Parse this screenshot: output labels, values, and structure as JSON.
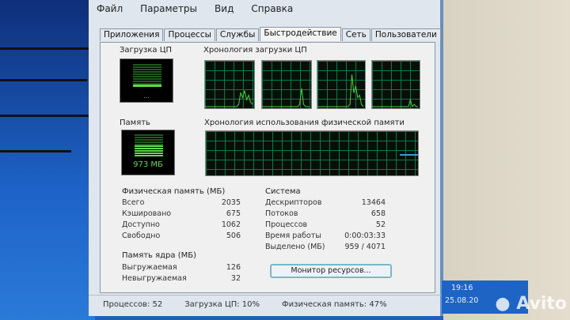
{
  "menu": [
    "Файл",
    "Параметры",
    "Вид",
    "Справка"
  ],
  "tabs": [
    {
      "label": "Приложения",
      "active": false
    },
    {
      "label": "Процессы",
      "active": false
    },
    {
      "label": "Службы",
      "active": false
    },
    {
      "label": "Быстродействие",
      "active": true
    },
    {
      "label": "Сеть",
      "active": false
    },
    {
      "label": "Пользователи",
      "active": false
    }
  ],
  "cpu": {
    "title": "Загрузка ЦП",
    "value_percent": 10,
    "history_title": "Хронология загрузки ЦП",
    "history": [
      [
        0,
        0,
        0,
        0,
        0,
        0,
        0,
        0,
        0,
        0,
        0,
        0,
        0,
        0,
        0,
        0,
        0,
        5,
        30,
        20,
        35,
        15,
        25,
        10,
        5
      ],
      [
        0,
        0,
        0,
        0,
        0,
        0,
        0,
        0,
        0,
        0,
        0,
        0,
        0,
        0,
        0,
        0,
        0,
        0,
        0,
        5,
        40,
        5,
        0,
        0,
        0
      ],
      [
        0,
        0,
        0,
        0,
        0,
        0,
        0,
        0,
        0,
        0,
        0,
        0,
        0,
        0,
        0,
        0,
        0,
        5,
        70,
        30,
        45,
        20,
        25,
        5,
        0
      ],
      [
        0,
        0,
        0,
        0,
        0,
        0,
        0,
        0,
        0,
        0,
        0,
        0,
        0,
        0,
        0,
        0,
        0,
        0,
        0,
        0,
        15,
        0,
        5,
        0,
        0
      ]
    ]
  },
  "memory": {
    "title": "Память",
    "value": "973 МБ",
    "history_title": "Хронология использования физической памяти",
    "used_percent": 47
  },
  "physical": {
    "title": "Физическая память (МБ)",
    "rows": [
      {
        "label": "Всего",
        "value": "2035"
      },
      {
        "label": "Кэшировано",
        "value": "675"
      },
      {
        "label": "Доступно",
        "value": "1062"
      },
      {
        "label": "Свободно",
        "value": "506"
      }
    ]
  },
  "kernel": {
    "title": "Память ядра (МБ)",
    "rows": [
      {
        "label": "Выгружаемая",
        "value": "126"
      },
      {
        "label": "Невыгружаемая",
        "value": "32"
      }
    ]
  },
  "system": {
    "title": "Система",
    "rows": [
      {
        "label": "Дескрипторов",
        "value": "13464"
      },
      {
        "label": "Потоков",
        "value": "658"
      },
      {
        "label": "Процессов",
        "value": "52"
      },
      {
        "label": "Время работы",
        "value": "0:00:03:33"
      },
      {
        "label": "Выделено (МБ)",
        "value": "959 / 4071"
      }
    ]
  },
  "resource_monitor_button": "Монитор ресурсов...",
  "status": {
    "processes": "Процессов: 52",
    "cpu": "Загрузка ЦП: 10%",
    "memory": "Физическая память: 47%"
  },
  "clock": {
    "time": "19:16",
    "date": "25.08.20"
  },
  "watermark": "Avito",
  "colors": {
    "graph_line": "#4cd13a",
    "memory_line": "#3a9be0"
  }
}
